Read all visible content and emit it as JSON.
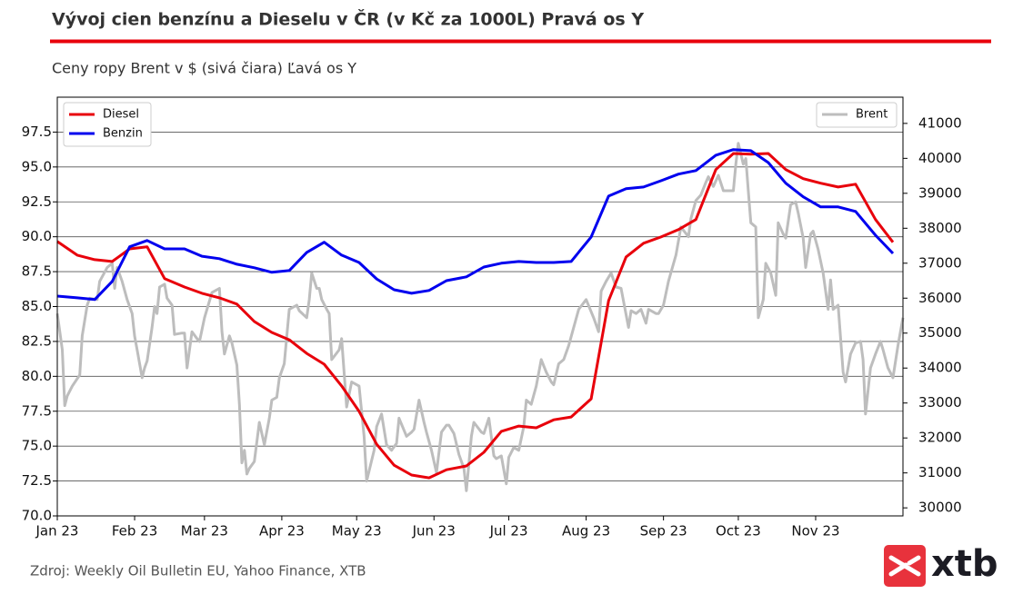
{
  "chart_data": {
    "type": "line",
    "title": "Vývoj cien benzínu a Dieselu v ČR (v Kč za 1000L) Pravá os Y",
    "subtitle": "Ceny ropy Brent v $ (sivá čiara) Ľavá os Y",
    "source": "Zdroj: Weekly Oil Bulletin EU, Yahoo Finance, XTB",
    "logo": "xtb",
    "xlim": [
      0,
      339
    ],
    "xticks": [
      {
        "value": 0,
        "label": "Jan 23"
      },
      {
        "value": 31,
        "label": "Feb 23"
      },
      {
        "value": 59,
        "label": "Mar 23"
      },
      {
        "value": 90,
        "label": "Apr 23"
      },
      {
        "value": 120,
        "label": "May 23"
      },
      {
        "value": 151,
        "label": "Jun 23"
      },
      {
        "value": 181,
        "label": "Jul 23"
      },
      {
        "value": 212,
        "label": "Aug 23"
      },
      {
        "value": 243,
        "label": "Sep 23"
      },
      {
        "value": 273,
        "label": "Oct 23"
      },
      {
        "value": 304,
        "label": "Nov 23"
      }
    ],
    "ylim": [
      70,
      100
    ],
    "yticks": [
      {
        "value": 70,
        "label": "70.0"
      },
      72.5,
      {
        "value": 75,
        "label": "75.0"
      },
      77.5,
      {
        "value": 80,
        "label": "80.0"
      },
      82.5,
      {
        "value": 85,
        "label": "85.0"
      },
      87.5,
      {
        "value": 90,
        "label": "90.0"
      },
      92.5,
      {
        "value": 95,
        "label": "95.0"
      },
      97.5
    ],
    "y2lim": [
      29770,
      41750
    ],
    "y2ticks": [
      30000,
      31000,
      32000,
      33000,
      34000,
      35000,
      36000,
      37000,
      38000,
      39000,
      40000,
      41000
    ],
    "grid": true,
    "legend_y2": "upper left",
    "legend_y": "upper right",
    "series": [
      {
        "name": "Diesel",
        "color": "#e8000b",
        "axis": "y2",
        "x": [
          0,
          8,
          15,
          22,
          29,
          36,
          43,
          51,
          58,
          65,
          72,
          79,
          86,
          93,
          100,
          107,
          114,
          121,
          128,
          135,
          142,
          149,
          156,
          164,
          171,
          178,
          185,
          192,
          199,
          206,
          214,
          221,
          228,
          235,
          242,
          249,
          256,
          264,
          271,
          278,
          285,
          292,
          299,
          306,
          313,
          320,
          328,
          335
        ],
        "values": [
          37620,
          37230,
          37100,
          37050,
          37410,
          37470,
          36560,
          36320,
          36140,
          36010,
          35830,
          35330,
          35020,
          34810,
          34420,
          34110,
          33490,
          32760,
          31820,
          31220,
          30940,
          30860,
          31090,
          31200,
          31590,
          32190,
          32340,
          32290,
          32520,
          32600,
          33120,
          35930,
          37180,
          37570,
          37750,
          37960,
          38250,
          39680,
          40140,
          40120,
          40140,
          39680,
          39420,
          39290,
          39180,
          39260,
          38250,
          37600
        ]
      },
      {
        "name": "Benzin",
        "color": "#0000ee",
        "axis": "y2",
        "x": [
          0,
          8,
          15,
          22,
          29,
          36,
          43,
          51,
          58,
          65,
          72,
          79,
          86,
          93,
          100,
          107,
          114,
          121,
          128,
          135,
          142,
          149,
          156,
          164,
          171,
          178,
          185,
          192,
          199,
          206,
          214,
          221,
          228,
          235,
          242,
          249,
          256,
          264,
          271,
          278,
          285,
          292,
          299,
          306,
          313,
          320,
          328,
          335
        ],
        "values": [
          36060,
          36010,
          35960,
          36480,
          37470,
          37650,
          37410,
          37410,
          37200,
          37130,
          36970,
          36870,
          36740,
          36790,
          37310,
          37600,
          37230,
          37020,
          36550,
          36240,
          36140,
          36220,
          36500,
          36610,
          36890,
          37000,
          37050,
          37020,
          37020,
          37050,
          37750,
          38920,
          39130,
          39180,
          39360,
          39550,
          39650,
          40090,
          40250,
          40220,
          39880,
          39290,
          38900,
          38610,
          38610,
          38480,
          37800,
          37280
        ]
      },
      {
        "name": "Brent",
        "color": "#bdbdbd",
        "axis": "y",
        "x": [
          0,
          2,
          3,
          4,
          6,
          9,
          10,
          12,
          13,
          16,
          17,
          20,
          22,
          23,
          24,
          26,
          28,
          30,
          31,
          32,
          34,
          35,
          36,
          38,
          39,
          40,
          41,
          43,
          44,
          46,
          47,
          50,
          51,
          52,
          54,
          56,
          57,
          59,
          62,
          65,
          66,
          67,
          69,
          70,
          72,
          73,
          74,
          75,
          76,
          77,
          79,
          81,
          83,
          85,
          86,
          88,
          89,
          91,
          93,
          96,
          97,
          100,
          101,
          102,
          104,
          105,
          106,
          108,
          109,
          110,
          113,
          114,
          116,
          118,
          121,
          123,
          124,
          127,
          128,
          130,
          132,
          134,
          136,
          137,
          140,
          142,
          143,
          145,
          147,
          148,
          150,
          152,
          154,
          156,
          157,
          159,
          161,
          163,
          164,
          166,
          167,
          170,
          171,
          173,
          175,
          176,
          178,
          180,
          181,
          183,
          185,
          187,
          188,
          190,
          192,
          194,
          196,
          198,
          199,
          201,
          203,
          205,
          207,
          209,
          212,
          215,
          217,
          218,
          220,
          222,
          224,
          226,
          229,
          230,
          232,
          234,
          236,
          237,
          240,
          241,
          243,
          245,
          248,
          250,
          253,
          254,
          256,
          258,
          260,
          261,
          263,
          265,
          267,
          269,
          271,
          272,
          273,
          275,
          276,
          277,
          278,
          280,
          281,
          283,
          284,
          286,
          288,
          289,
          291,
          292,
          294,
          296,
          297,
          299,
          300,
          302,
          303,
          305,
          307,
          309,
          310,
          311,
          313,
          315,
          316,
          318,
          320,
          322,
          323,
          324,
          326,
          328,
          330,
          331,
          333,
          335,
          337,
          339
        ],
        "values": [
          84.5,
          81.9,
          77.9,
          78.6,
          79.3,
          80.1,
          82.9,
          85.1,
          85.6,
          85.5,
          86.8,
          87.8,
          88.1,
          86.3,
          87.8,
          86.8,
          85.5,
          84.5,
          82.9,
          81.9,
          79.9,
          80.6,
          81.1,
          83.5,
          85.0,
          84.5,
          86.4,
          86.6,
          85.6,
          85.1,
          83.0,
          83.1,
          83.1,
          80.6,
          83.2,
          82.7,
          82.5,
          84.2,
          86.0,
          86.3,
          83.2,
          81.6,
          82.9,
          82.4,
          80.8,
          78.0,
          73.8,
          74.7,
          73.0,
          73.4,
          73.9,
          76.7,
          75.1,
          77.0,
          78.3,
          78.5,
          79.9,
          80.9,
          84.8,
          85.1,
          84.7,
          84.2,
          85.5,
          87.4,
          86.3,
          86.3,
          85.5,
          84.8,
          84.5,
          81.2,
          81.9,
          82.7,
          77.8,
          79.6,
          79.3,
          75.7,
          72.5,
          74.7,
          76.4,
          77.3,
          75.1,
          74.7,
          75.2,
          77.0,
          75.7,
          76.0,
          76.2,
          78.3,
          76.7,
          76.0,
          74.7,
          73.1,
          76.0,
          76.5,
          76.5,
          75.9,
          74.4,
          73.4,
          71.8,
          75.7,
          76.7,
          76.0,
          75.9,
          77.0,
          74.3,
          74.1,
          74.3,
          72.3,
          74.2,
          74.9,
          74.7,
          76.4,
          78.3,
          78.0,
          79.3,
          81.2,
          80.3,
          79.6,
          79.4,
          80.9,
          81.2,
          82.2,
          83.5,
          84.8,
          85.5,
          84.2,
          83.2,
          86.1,
          86.8,
          87.4,
          86.4,
          86.3,
          83.5,
          84.7,
          84.5,
          84.8,
          83.8,
          84.8,
          84.5,
          84.5,
          85.1,
          86.8,
          88.7,
          90.7,
          90.0,
          91.3,
          92.6,
          93.0,
          93.9,
          94.3,
          93.6,
          94.4,
          93.3,
          93.3,
          93.3,
          95.2,
          96.7,
          95.2,
          95.6,
          93.3,
          91.0,
          90.7,
          84.2,
          85.5,
          88.1,
          87.4,
          85.8,
          91.0,
          90.2,
          89.9,
          92.3,
          92.5,
          91.7,
          89.9,
          87.8,
          90.2,
          90.4,
          89.1,
          87.4,
          84.8,
          86.9,
          84.8,
          85.1,
          80.3,
          79.6,
          81.6,
          82.4,
          82.5,
          81.2,
          77.3,
          80.6,
          81.6,
          82.5,
          81.9,
          80.6,
          79.9,
          82.2,
          84.2
        ]
      }
    ]
  }
}
